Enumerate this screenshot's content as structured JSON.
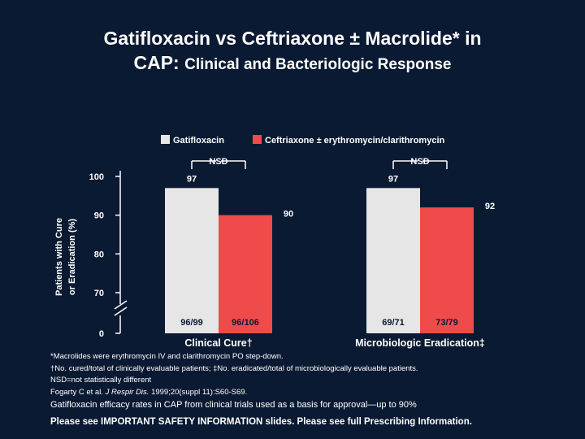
{
  "slide": {
    "title_line1": "Gatifloxacin vs Ceftriaxone ± Macrolide* in",
    "title_line2_a": "CAP: ",
    "title_line2_b": "Clinical and Bacteriologic Response"
  },
  "chart_data": {
    "type": "bar",
    "categories": [
      "Clinical Cure†",
      "Microbiologic Eradication‡"
    ],
    "series": [
      {
        "name": "Gatifloxacin",
        "values": [
          97,
          97
        ],
        "color": "#e6e6e6",
        "counts": [
          "96/99",
          "69/71"
        ]
      },
      {
        "name": "Ceftriaxone ± erythromycin/clarithromycin",
        "values": [
          90,
          92
        ],
        "color": "#f04b4b",
        "counts": [
          "96/106",
          "73/79"
        ]
      }
    ],
    "ylabel": [
      "Patients with Cure",
      "or Eradication (%)"
    ],
    "yticks": [
      "0",
      "70",
      "80",
      "90",
      "100"
    ],
    "ylim": [
      70,
      100
    ],
    "axis_break": true,
    "significance": [
      "NSD",
      "NSD"
    ],
    "legend_position": "top"
  },
  "footnotes": {
    "line1": "*Macrolides were erythromycin IV and clarithromycin PO step-down.",
    "line2": "†No. cured/total of clinically evaluable patients; ‡No. eradicated/total of microbiologically evaluable patients.",
    "line3": "NSD=not statistically different",
    "ref_a": "Fogarty C et al. ",
    "ref_b": "J Respir Dis.",
    "ref_c": " 1999;20(suppl 11):S60-S69.",
    "efficacy": "Gatifloxacin efficacy rates in CAP from clinical trials used as a basis for approval—up to 90%",
    "safety": "Please see IMPORTANT SAFETY INFORMATION slides.  Please see full Prescribing Information."
  },
  "colors": {
    "background": "#0b1a33",
    "gatifloxacin": "#e6e6e6",
    "ceftriaxone": "#f04b4b",
    "text": "#ffffff"
  }
}
